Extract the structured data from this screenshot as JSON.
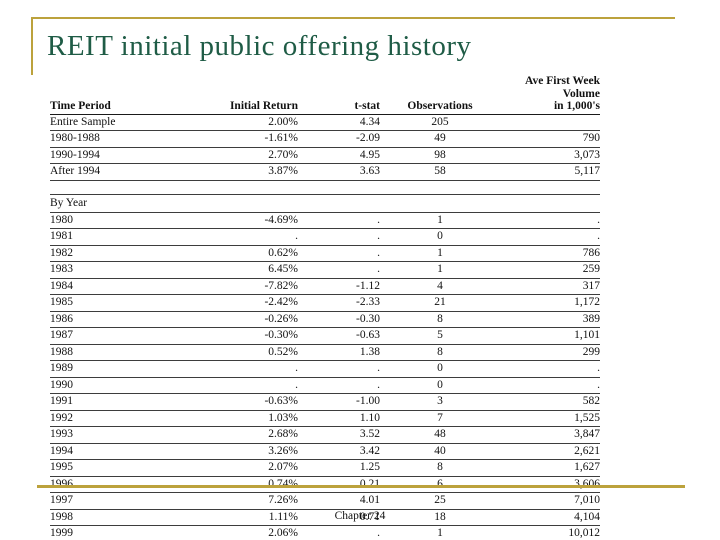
{
  "slide": {
    "title": "REIT initial public offering history",
    "accent_color": "#bca23c",
    "title_color": "#1f5c46"
  },
  "table": {
    "headers": {
      "time_period": "Time Period",
      "initial_return": "Initial Return",
      "t_stat": "t-stat",
      "observations": "Observations",
      "volume": "Ave First Week Volume\nin 1,000's"
    },
    "summary_rows": [
      {
        "period": "Entire Sample",
        "initial_return": "2.00%",
        "t_stat": "4.34",
        "observations": "205",
        "volume": ""
      },
      {
        "period": "1980-1988",
        "initial_return": "-1.61%",
        "t_stat": "-2.09",
        "observations": "49",
        "volume": "790"
      },
      {
        "period": "1990-1994",
        "initial_return": "2.70%",
        "t_stat": "4.95",
        "observations": "98",
        "volume": "3,073"
      },
      {
        "period": "After 1994",
        "initial_return": "3.87%",
        "t_stat": "3.63",
        "observations": "58",
        "volume": "5,117"
      }
    ],
    "by_year_label": "By Year",
    "year_rows": [
      {
        "period": "1980",
        "initial_return": "-4.69%",
        "t_stat": ".",
        "observations": "1",
        "volume": "."
      },
      {
        "period": "1981",
        "initial_return": ".",
        "t_stat": ".",
        "observations": "0",
        "volume": "."
      },
      {
        "period": "1982",
        "initial_return": "0.62%",
        "t_stat": ".",
        "observations": "1",
        "volume": "786"
      },
      {
        "period": "1983",
        "initial_return": "6.45%",
        "t_stat": ".",
        "observations": "1",
        "volume": "259"
      },
      {
        "period": "1984",
        "initial_return": "-7.82%",
        "t_stat": "-1.12",
        "observations": "4",
        "volume": "317"
      },
      {
        "period": "1985",
        "initial_return": "-2.42%",
        "t_stat": "-2.33",
        "observations": "21",
        "volume": "1,172"
      },
      {
        "period": "1986",
        "initial_return": "-0.26%",
        "t_stat": "-0.30",
        "observations": "8",
        "volume": "389"
      },
      {
        "period": "1987",
        "initial_return": "-0.30%",
        "t_stat": "-0.63",
        "observations": "5",
        "volume": "1,101"
      },
      {
        "period": "1988",
        "initial_return": "0.52%",
        "t_stat": "1.38",
        "observations": "8",
        "volume": "299"
      },
      {
        "period": "1989",
        "initial_return": ".",
        "t_stat": ".",
        "observations": "0",
        "volume": "."
      },
      {
        "period": "1990",
        "initial_return": ".",
        "t_stat": ".",
        "observations": "0",
        "volume": "."
      },
      {
        "period": "1991",
        "initial_return": "-0.63%",
        "t_stat": "-1.00",
        "observations": "3",
        "volume": "582"
      },
      {
        "period": "1992",
        "initial_return": "1.03%",
        "t_stat": "1.10",
        "observations": "7",
        "volume": "1,525"
      },
      {
        "period": "1993",
        "initial_return": "2.68%",
        "t_stat": "3.52",
        "observations": "48",
        "volume": "3,847"
      },
      {
        "period": "1994",
        "initial_return": "3.26%",
        "t_stat": "3.42",
        "observations": "40",
        "volume": "2,621"
      },
      {
        "period": "1995",
        "initial_return": "2.07%",
        "t_stat": "1.25",
        "observations": "8",
        "volume": "1,627"
      },
      {
        "period": "1996",
        "initial_return": "0.74%",
        "t_stat": "0.21",
        "observations": "6",
        "volume": "3,606"
      },
      {
        "period": "1997",
        "initial_return": "7.26%",
        "t_stat": "4.01",
        "observations": "25",
        "volume": "7,010"
      },
      {
        "period": "1998",
        "initial_return": "1.11%",
        "t_stat": "0.71",
        "observations": "18",
        "volume": "4,104"
      },
      {
        "period": "1999",
        "initial_return": "2.06%",
        "t_stat": ".",
        "observations": "1",
        "volume": "10,012"
      }
    ]
  },
  "footer": {
    "text": "Chapter 24"
  }
}
